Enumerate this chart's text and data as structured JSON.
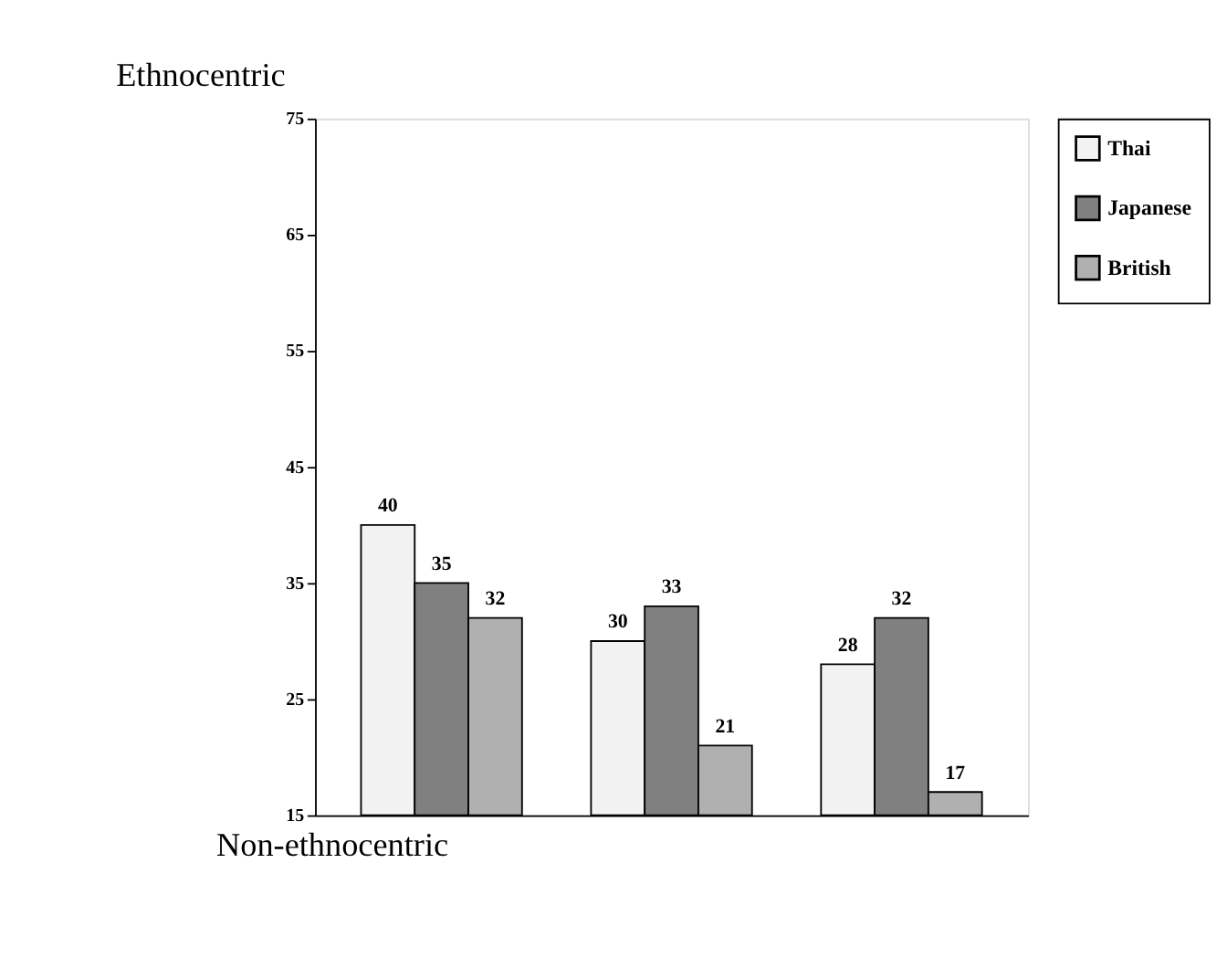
{
  "chart_data": {
    "type": "bar",
    "title": "Ethnocentric",
    "xlabel": "Non-ethnocentric",
    "categories": [
      null,
      null,
      null
    ],
    "series": [
      {
        "name": "Thai",
        "color": "#f2f2f2",
        "values": [
          40,
          30,
          28
        ]
      },
      {
        "name": "Japanese",
        "color": "#808080",
        "values": [
          35,
          33,
          32
        ]
      },
      {
        "name": "British",
        "color": "#b0b0b0",
        "values": [
          32,
          21,
          17
        ]
      }
    ],
    "ylim": [
      15,
      75
    ],
    "yticks": [
      15,
      25,
      35,
      45,
      55,
      65,
      75
    ],
    "grid": false,
    "legend": "right",
    "data_labels": true,
    "tick_labels": "y"
  }
}
